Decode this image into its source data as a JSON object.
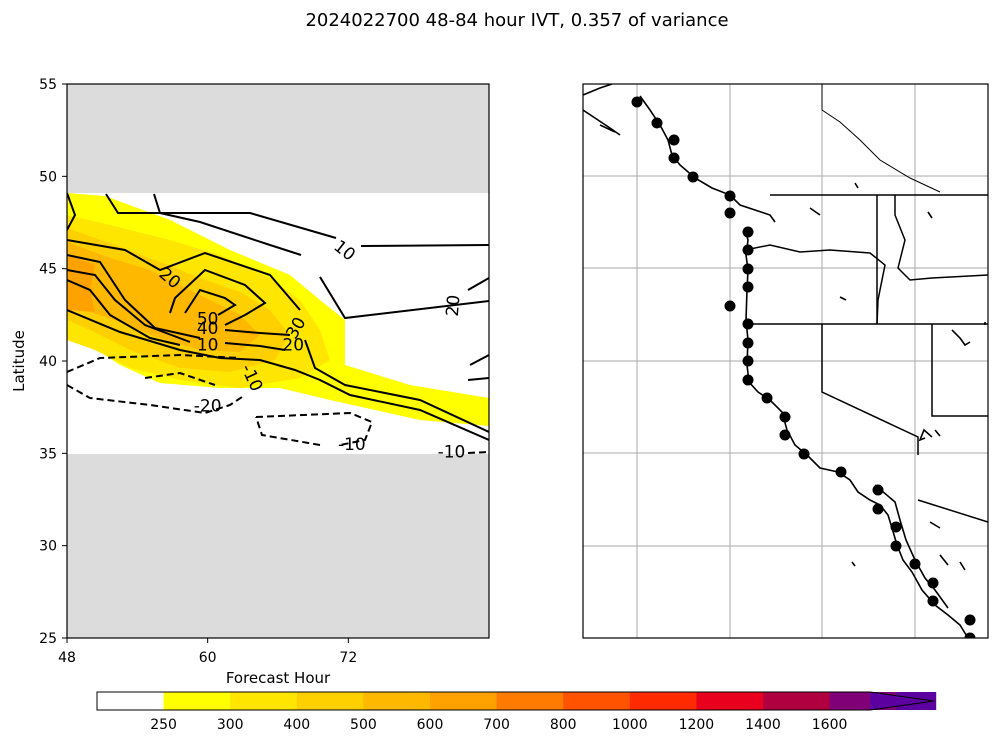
{
  "title": "2024022700 48-84 hour IVT, 0.357 of variance",
  "chart_data": [
    {
      "type": "contour",
      "xlabel": "Forecast Hour",
      "ylabel": "Latitude",
      "xlim": [
        48,
        84
      ],
      "ylim": [
        25,
        55
      ],
      "xticks": [
        48,
        60,
        72
      ],
      "yticks": [
        25,
        30,
        35,
        40,
        45,
        50,
        55
      ],
      "data_lat_range": [
        35,
        49
      ],
      "masked_color": "#dcdcdc",
      "contour_labels": [
        {
          "text": "10",
          "x": 71.7,
          "y": 46.0,
          "rotate": 38
        },
        {
          "text": "20",
          "x": 56.8,
          "y": 44.5,
          "rotate": 40
        },
        {
          "text": "20",
          "x": 80.9,
          "y": 43.0,
          "rotate": -85
        },
        {
          "text": "50",
          "x": 60.0,
          "y": 42.3,
          "rotate": 0
        },
        {
          "text": "40",
          "x": 60.0,
          "y": 41.8,
          "rotate": 0
        },
        {
          "text": "30",
          "x": 67.5,
          "y": 41.8,
          "rotate": -60
        },
        {
          "text": "20",
          "x": 67.3,
          "y": 40.9,
          "rotate": 0
        },
        {
          "text": "10",
          "x": 60.0,
          "y": 40.9,
          "rotate": 0
        },
        {
          "text": "-10",
          "x": 63.8,
          "y": 39.1,
          "rotate": 65
        },
        {
          "text": "-20",
          "x": 60.0,
          "y": 37.6,
          "rotate": 0
        },
        {
          "text": "-10",
          "x": 72.3,
          "y": 35.5,
          "rotate": 0
        },
        {
          "text": "-10",
          "x": 80.8,
          "y": 35.1,
          "rotate": 0
        }
      ]
    },
    {
      "type": "map",
      "region": "US West Coast",
      "marker_color": "#000000"
    },
    {
      "type": "colorbar",
      "levels": [
        "250",
        "300",
        "400",
        "500",
        "600",
        "700",
        "800",
        "1000",
        "1200",
        "1400",
        "1600"
      ],
      "colors": [
        "#ffff00",
        "#ffe600",
        "#ffd000",
        "#ffb800",
        "#ffa200",
        "#ff7b00",
        "#ff5300",
        "#ff2a00",
        "#e8001c",
        "#b00040",
        "#800078",
        "#5c00a0"
      ],
      "under_color": "#ffffff",
      "extend": "max"
    }
  ]
}
